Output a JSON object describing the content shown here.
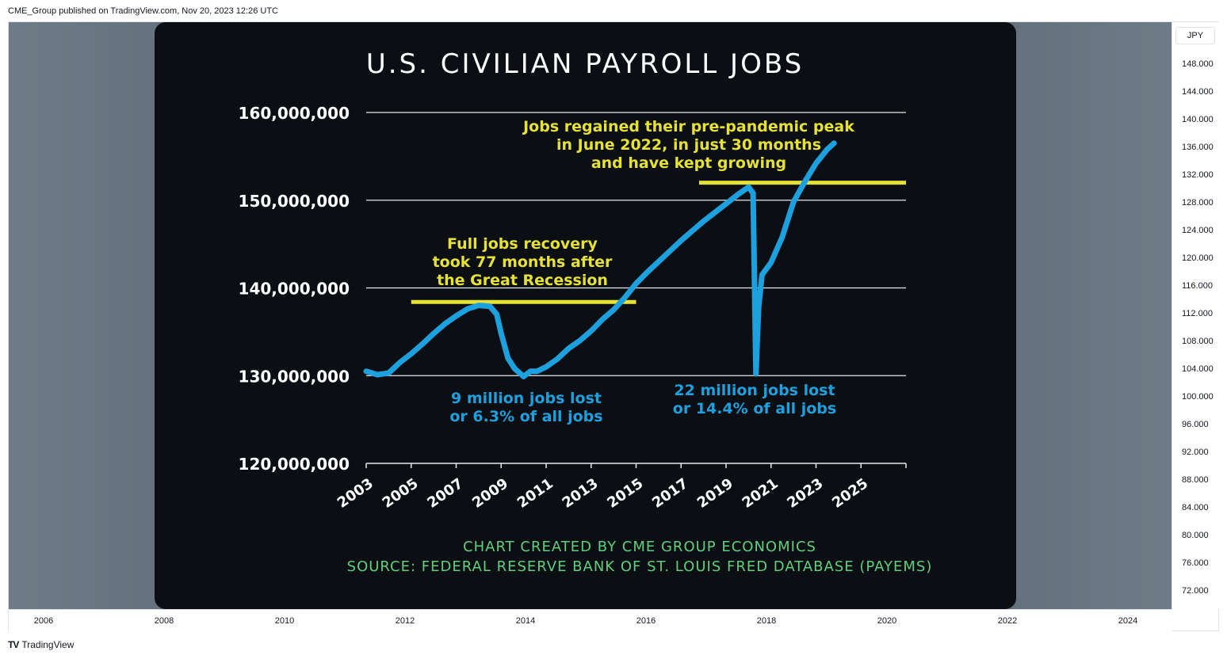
{
  "header": {
    "published": "CME_Group published on TradingView.com, Nov 20, 2023 12:26 UTC"
  },
  "price_axis": {
    "currency": "JPY",
    "labels": [
      "148.000",
      "144.000",
      "140.000",
      "136.000",
      "132.000",
      "128.000",
      "124.000",
      "120.000",
      "116.000",
      "112.000",
      "108.000",
      "104.000",
      "100.000",
      "96.000",
      "92.000",
      "88.000",
      "84.000",
      "80.000",
      "76.000",
      "72.000"
    ]
  },
  "time_axis": {
    "labels": [
      "2006",
      "2008",
      "2010",
      "2012",
      "2014",
      "2016",
      "2018",
      "2020",
      "2022",
      "2024"
    ]
  },
  "footer": {
    "brand": "TradingView",
    "logo": "TV"
  },
  "chart_data": {
    "type": "line",
    "title": "U.S. CIVILIAN PAYROLL JOBS",
    "ylim": [
      120000000,
      160000000
    ],
    "y_ticks": [
      "160,000,000",
      "150,000,000",
      "140,000,000",
      "130,000,000",
      "120,000,000"
    ],
    "x_ticks": [
      "2003",
      "2005",
      "2007",
      "2009",
      "2011",
      "2013",
      "2015",
      "2017",
      "2019",
      "2021",
      "2023",
      "2025"
    ],
    "grid": "horizontal",
    "series": [
      {
        "color": "#1da1de",
        "points": [
          [
            2003.0,
            130.5
          ],
          [
            2003.5,
            130.1
          ],
          [
            2004.0,
            130.3
          ],
          [
            2004.5,
            131.5
          ],
          [
            2005.0,
            132.5
          ],
          [
            2005.5,
            133.6
          ],
          [
            2006.0,
            134.8
          ],
          [
            2006.5,
            135.9
          ],
          [
            2007.0,
            136.8
          ],
          [
            2007.5,
            137.6
          ],
          [
            2008.0,
            138.0
          ],
          [
            2008.5,
            137.9
          ],
          [
            2008.8,
            137.0
          ],
          [
            2009.0,
            134.8
          ],
          [
            2009.3,
            132.0
          ],
          [
            2009.6,
            130.8
          ],
          [
            2010.0,
            129.9
          ],
          [
            2010.3,
            130.5
          ],
          [
            2010.6,
            130.5
          ],
          [
            2011.0,
            131.0
          ],
          [
            2011.5,
            131.9
          ],
          [
            2012.0,
            133.1
          ],
          [
            2012.5,
            134.0
          ],
          [
            2013.0,
            135.1
          ],
          [
            2013.5,
            136.4
          ],
          [
            2014.0,
            137.5
          ],
          [
            2014.5,
            138.9
          ],
          [
            2015.0,
            140.5
          ],
          [
            2015.5,
            141.8
          ],
          [
            2016.0,
            143.0
          ],
          [
            2016.5,
            144.2
          ],
          [
            2017.0,
            145.4
          ],
          [
            2017.5,
            146.5
          ],
          [
            2018.0,
            147.6
          ],
          [
            2018.5,
            148.6
          ],
          [
            2019.0,
            149.6
          ],
          [
            2019.5,
            150.6
          ],
          [
            2020.0,
            151.5
          ],
          [
            2020.2,
            150.8
          ],
          [
            2020.33,
            130.2
          ],
          [
            2020.45,
            137.8
          ],
          [
            2020.6,
            141.5
          ],
          [
            2021.0,
            142.9
          ],
          [
            2021.5,
            145.8
          ],
          [
            2022.0,
            149.8
          ],
          [
            2022.5,
            152.1
          ],
          [
            2023.0,
            154.2
          ],
          [
            2023.5,
            155.8
          ],
          [
            2023.8,
            156.5
          ]
        ]
      }
    ],
    "reference_lines": [
      {
        "y": 138.4,
        "x_from": 2005.0,
        "x_to": 2015.0,
        "color": "#e6e135"
      },
      {
        "y": 152.0,
        "x_from": 2017.8,
        "x_to": 2027.0,
        "color": "#e6e135"
      }
    ],
    "annotations": [
      {
        "lines": [
          "Jobs regained their pre-pandemic peak",
          "in June 2022, in just 30 months",
          "and have kept growing"
        ],
        "color": "#e6e135"
      },
      {
        "lines": [
          "Full jobs recovery",
          "took 77 months after",
          "the Great Recession"
        ],
        "color": "#e6e135"
      },
      {
        "lines": [
          "9 million jobs lost",
          "or 6.3% of all jobs"
        ],
        "color": "#1da1de"
      },
      {
        "lines": [
          "22 million jobs lost",
          "or 14.4% of all jobs"
        ],
        "color": "#1da1de"
      }
    ],
    "credits": [
      "CHART CREATED BY CME GROUP ECONOMICS",
      "SOURCE: FEDERAL RESERVE BANK OF ST. LOUIS FRED DATABASE (PAYEMS)"
    ],
    "colors": {
      "background": "#0b0f14",
      "text": "#ffffff",
      "credit": "#5fcf7d"
    }
  }
}
